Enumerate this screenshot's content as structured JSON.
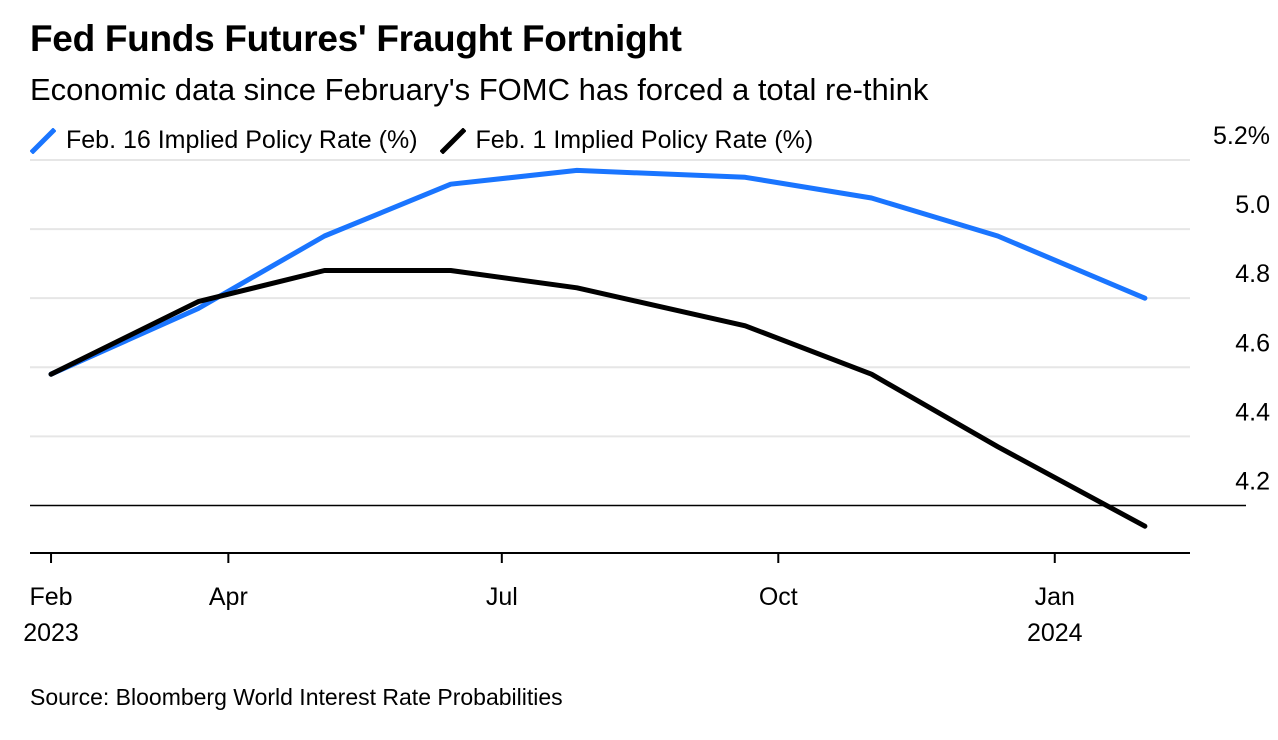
{
  "title": "Fed Funds Futures' Fraught Fortnight",
  "subtitle": "Economic data since February's FOMC has forced a total re-think",
  "source": "Source: Bloomberg World Interest Rate Probabilities",
  "colors": {
    "feb16": "#1a75ff",
    "feb1": "#000000",
    "grid": "#e6e6e6"
  },
  "chart_data": {
    "type": "line",
    "x": [
      "2023-02-01",
      "2023-03-22",
      "2023-05-03",
      "2023-06-14",
      "2023-07-26",
      "2023-09-20",
      "2023-11-01",
      "2023-12-13",
      "2024-01-31"
    ],
    "series": [
      {
        "name": "Feb. 16 Implied Policy Rate (%)",
        "color": "#1a75ff",
        "values": [
          4.58,
          4.77,
          4.98,
          5.13,
          5.17,
          5.15,
          5.09,
          4.98,
          4.8
        ]
      },
      {
        "name": "Feb. 1 Implied Policy Rate (%)",
        "color": "#000000",
        "values": [
          4.58,
          4.79,
          4.88,
          4.88,
          4.83,
          4.72,
          4.58,
          4.37,
          4.14
        ]
      }
    ],
    "yticks": [
      4.2,
      4.4,
      4.6,
      4.8,
      5.0,
      5.2
    ],
    "ytick_labels": [
      "4.2",
      "4.4",
      "4.6",
      "4.8",
      "5.0",
      "5.2%"
    ],
    "ylim": [
      4.1,
      5.2
    ],
    "xlim": [
      "2023-01-25",
      "2024-02-15"
    ],
    "xticks": [
      {
        "date": "2023-02-01",
        "line1": "Feb",
        "line2": "2023"
      },
      {
        "date": "2023-04-01",
        "line1": "Apr",
        "line2": ""
      },
      {
        "date": "2023-07-01",
        "line1": "Jul",
        "line2": ""
      },
      {
        "date": "2023-10-01",
        "line1": "Oct",
        "line2": ""
      },
      {
        "date": "2024-01-01",
        "line1": "Jan",
        "line2": "2024"
      }
    ],
    "grid": true,
    "legend_position": "top-left"
  }
}
